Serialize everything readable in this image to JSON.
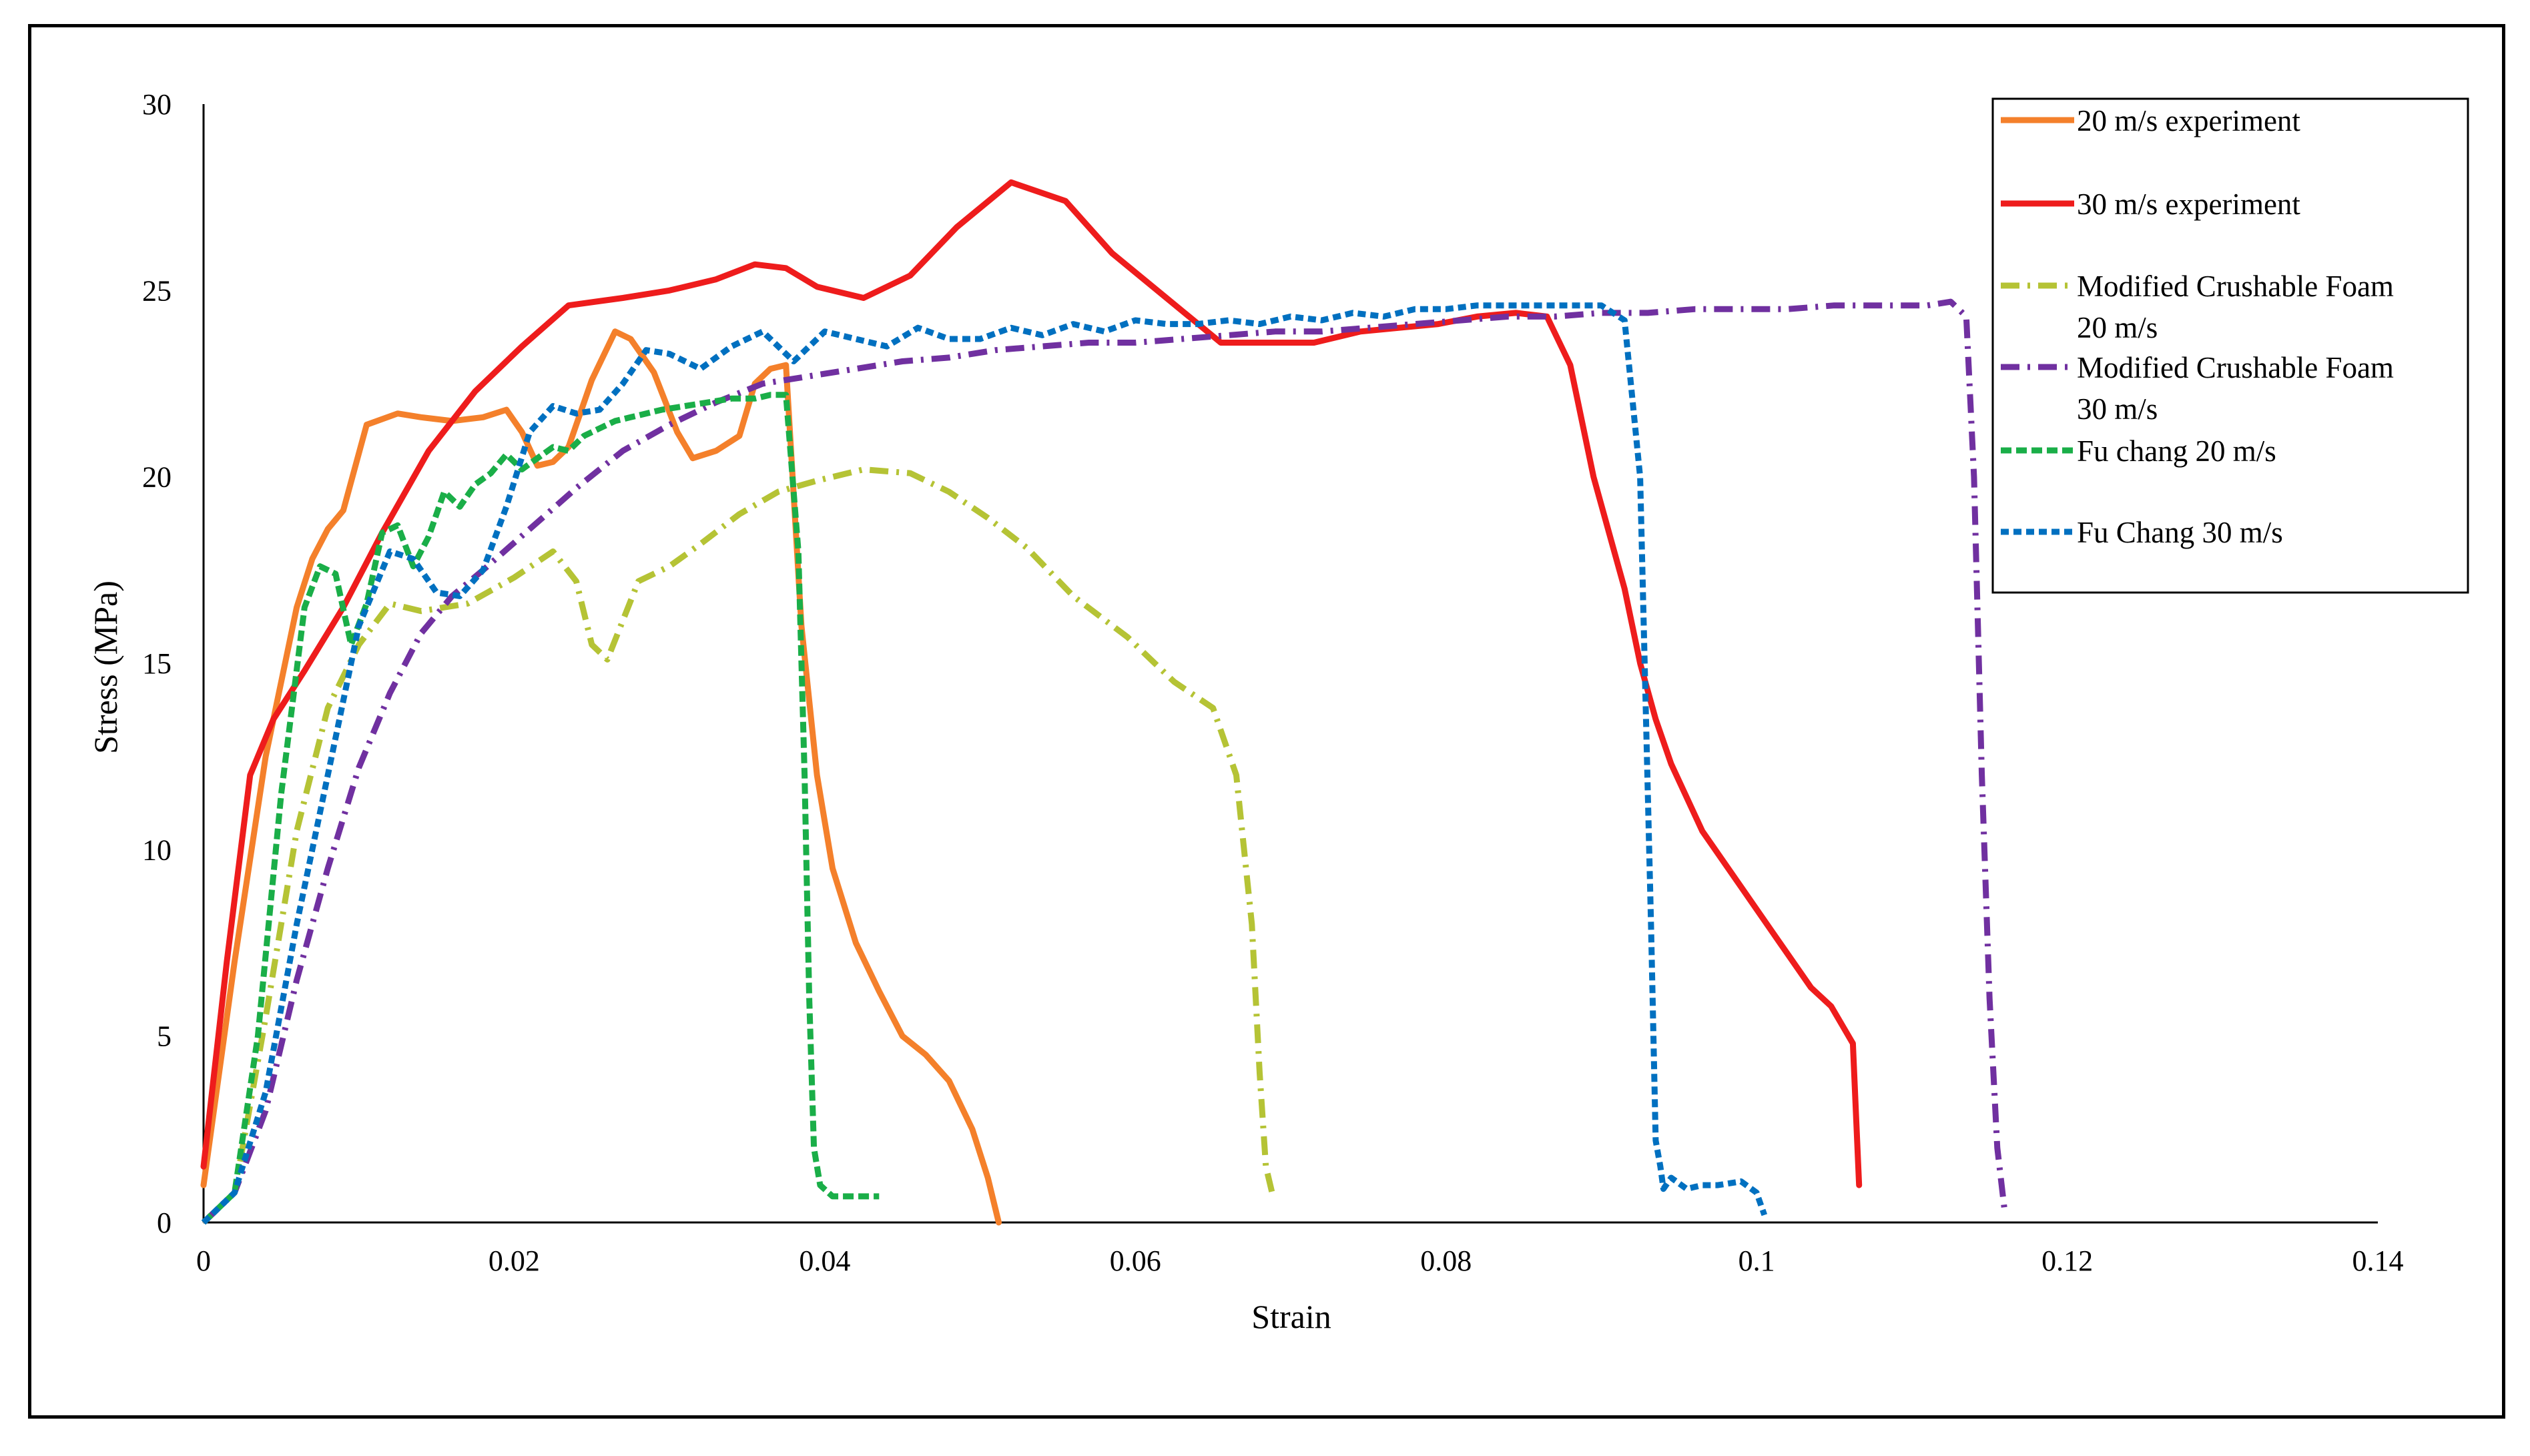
{
  "chart_data": {
    "type": "line",
    "title": "",
    "xlabel": "Strain",
    "ylabel": "Stress (MPa)",
    "xlim": [
      0,
      0.14
    ],
    "ylim": [
      0,
      30
    ],
    "xticks": [
      0,
      0.02,
      0.04,
      0.06,
      0.08,
      0.1,
      0.12,
      0.14
    ],
    "yticks": [
      0,
      5,
      10,
      15,
      20,
      25,
      30
    ],
    "xtick_labels": [
      "0",
      "0.02",
      "0.04",
      "0.06",
      "0.08",
      "0.1",
      "0.12",
      "0.14"
    ],
    "ytick_labels": [
      "0",
      "5",
      "10",
      "15",
      "20",
      "25",
      "30"
    ],
    "legend_position": "top-right",
    "series": [
      {
        "name": "20 m/s experiment",
        "legend_lines": [
          "20 m/s experiment"
        ],
        "color": "#F4802B",
        "dash": "solid",
        "x": [
          0,
          0.002,
          0.004,
          0.006,
          0.007,
          0.008,
          0.009,
          0.0105,
          0.0125,
          0.014,
          0.016,
          0.018,
          0.0195,
          0.0205,
          0.0215,
          0.0225,
          0.0235,
          0.025,
          0.0265,
          0.0275,
          0.029,
          0.0305,
          0.0315,
          0.033,
          0.0345,
          0.0355,
          0.0365,
          0.0375,
          0.0385,
          0.0395,
          0.0405,
          0.042,
          0.0435,
          0.045,
          0.0465,
          0.048,
          0.0495,
          0.0505,
          0.0512
        ],
        "y": [
          1,
          7,
          12.5,
          16.5,
          17.8,
          18.6,
          19.1,
          21.4,
          21.7,
          21.6,
          21.5,
          21.6,
          21.8,
          21.2,
          20.3,
          20.4,
          20.8,
          22.6,
          23.9,
          23.7,
          22.8,
          21.2,
          20.5,
          20.7,
          21.1,
          22.5,
          22.9,
          23,
          16,
          12,
          9.5,
          7.5,
          6.2,
          5,
          4.5,
          3.8,
          2.5,
          1.2,
          0
        ]
      },
      {
        "name": "30 m/s experiment",
        "legend_lines": [
          "30 m/s experiment"
        ],
        "color": "#EE1C1C",
        "dash": "solid",
        "x": [
          0,
          0.0015,
          0.003,
          0.0045,
          0.0065,
          0.009,
          0.0115,
          0.0145,
          0.0175,
          0.0205,
          0.0235,
          0.027,
          0.03,
          0.033,
          0.0355,
          0.0375,
          0.0395,
          0.0425,
          0.0455,
          0.0485,
          0.052,
          0.0555,
          0.0585,
          0.062,
          0.0655,
          0.069,
          0.0715,
          0.0745,
          0.077,
          0.0795,
          0.082,
          0.0845,
          0.0865,
          0.088,
          0.0895,
          0.0915,
          0.0925,
          0.0935,
          0.0945,
          0.0965,
          0.099,
          0.1015,
          0.1035,
          0.1048,
          0.1055,
          0.1062,
          0.1066
        ],
        "y": [
          1.5,
          7,
          12,
          13.5,
          14.8,
          16.5,
          18.5,
          20.7,
          22.3,
          23.5,
          24.6,
          24.8,
          25,
          25.3,
          25.7,
          25.6,
          25.1,
          24.8,
          25.4,
          26.7,
          27.9,
          27.4,
          26,
          24.8,
          23.6,
          23.6,
          23.6,
          23.9,
          24,
          24.1,
          24.3,
          24.4,
          24.3,
          23,
          20,
          17,
          15,
          13.5,
          12.3,
          10.5,
          9,
          7.5,
          6.3,
          5.8,
          5.3,
          4.8,
          1
        ]
      },
      {
        "name": "Modified Crushable Foam 20 m/s",
        "legend_lines": [
          "Modified Crushable Foam",
          "20 m/s"
        ],
        "color": "#B5C335",
        "dash": "28 12 4 12",
        "x": [
          0,
          0.002,
          0.004,
          0.006,
          0.008,
          0.01,
          0.012,
          0.014,
          0.017,
          0.02,
          0.0225,
          0.024,
          0.025,
          0.026,
          0.028,
          0.03,
          0.032,
          0.0345,
          0.037,
          0.0395,
          0.0425,
          0.0455,
          0.048,
          0.0505,
          0.053,
          0.056,
          0.0595,
          0.0625,
          0.065,
          0.0665,
          0.0675,
          0.068,
          0.0684,
          0.0688
        ],
        "y": [
          0,
          0.8,
          5.5,
          10.5,
          13.8,
          15.5,
          16.6,
          16.4,
          16.6,
          17.3,
          18,
          17.2,
          15.5,
          15.1,
          17.2,
          17.6,
          18.2,
          19,
          19.6,
          19.9,
          20.2,
          20.1,
          19.6,
          18.9,
          18.1,
          16.8,
          15.7,
          14.5,
          13.8,
          12,
          8,
          4,
          1.5,
          0.8
        ]
      },
      {
        "name": "Modified Crushable Foam 30 m/s",
        "legend_lines": [
          "Modified Crushable Foam",
          "30 m/s"
        ],
        "color": "#7030A0",
        "dash": "28 12 4 12",
        "x": [
          0,
          0.002,
          0.004,
          0.006,
          0.008,
          0.01,
          0.012,
          0.014,
          0.016,
          0.018,
          0.021,
          0.024,
          0.027,
          0.03,
          0.033,
          0.036,
          0.039,
          0.042,
          0.045,
          0.048,
          0.051,
          0.054,
          0.057,
          0.06,
          0.063,
          0.066,
          0.069,
          0.072,
          0.075,
          0.078,
          0.081,
          0.084,
          0.087,
          0.09,
          0.093,
          0.096,
          0.099,
          0.102,
          0.105,
          0.108,
          0.111,
          0.1125,
          0.1135,
          0.114,
          0.1145,
          0.115,
          0.1155,
          0.116
        ],
        "y": [
          0,
          0.8,
          3,
          6.5,
          9.5,
          12.2,
          14.2,
          15.8,
          16.8,
          17.5,
          18.6,
          19.7,
          20.7,
          21.4,
          22,
          22.5,
          22.7,
          22.9,
          23.1,
          23.2,
          23.4,
          23.5,
          23.6,
          23.6,
          23.7,
          23.8,
          23.9,
          23.9,
          24,
          24.1,
          24.2,
          24.3,
          24.3,
          24.4,
          24.4,
          24.5,
          24.5,
          24.5,
          24.6,
          24.6,
          24.6,
          24.7,
          24.3,
          20,
          12,
          6,
          2,
          0.2
        ]
      },
      {
        "name": "Fu chang 20 m/s",
        "legend_lines": [
          "Fu chang 20 m/s"
        ],
        "color": "#1AAE48",
        "dash": "16 7",
        "x": [
          0,
          0.002,
          0.0035,
          0.005,
          0.0065,
          0.0075,
          0.0085,
          0.0095,
          0.0105,
          0.0115,
          0.0125,
          0.0135,
          0.0145,
          0.0155,
          0.0165,
          0.0175,
          0.0185,
          0.0195,
          0.0205,
          0.0215,
          0.0225,
          0.0235,
          0.0245,
          0.0255,
          0.0265,
          0.0275,
          0.0285,
          0.0295,
          0.031,
          0.0325,
          0.034,
          0.0355,
          0.0365,
          0.0375,
          0.0383,
          0.0387,
          0.039,
          0.0393,
          0.0397,
          0.0405,
          0.042,
          0.0435
        ],
        "y": [
          0,
          0.8,
          5,
          11.5,
          16.5,
          17.6,
          17.4,
          15.5,
          16.6,
          18.5,
          18.7,
          17.6,
          18.4,
          19.6,
          19.2,
          19.8,
          20.1,
          20.6,
          20.2,
          20.5,
          20.8,
          20.7,
          21.1,
          21.3,
          21.5,
          21.6,
          21.7,
          21.8,
          21.9,
          22,
          22.1,
          22.1,
          22.2,
          22.2,
          18,
          12,
          6,
          2,
          1,
          0.7,
          0.7,
          0.7
        ]
      },
      {
        "name": "Fu Chang 30 m/s",
        "legend_lines": [
          "Fu Chang 30 m/s"
        ],
        "color": "#0070C0",
        "dash": "12 7",
        "x": [
          0,
          0.002,
          0.004,
          0.006,
          0.008,
          0.01,
          0.012,
          0.0135,
          0.015,
          0.0165,
          0.018,
          0.0195,
          0.021,
          0.0225,
          0.024,
          0.0255,
          0.027,
          0.0285,
          0.03,
          0.032,
          0.034,
          0.036,
          0.038,
          0.04,
          0.042,
          0.044,
          0.046,
          0.048,
          0.05,
          0.052,
          0.054,
          0.056,
          0.058,
          0.06,
          0.062,
          0.064,
          0.066,
          0.068,
          0.07,
          0.072,
          0.074,
          0.076,
          0.078,
          0.08,
          0.082,
          0.084,
          0.086,
          0.088,
          0.09,
          0.0915,
          0.0925,
          0.0932,
          0.0935,
          0.0938,
          0.094,
          0.0945,
          0.0955,
          0.0965,
          0.0975,
          0.099,
          0.1,
          0.1005
        ],
        "y": [
          0,
          0.8,
          3.5,
          8,
          12,
          16,
          18,
          17.8,
          16.9,
          16.8,
          17.5,
          19.2,
          21.2,
          21.9,
          21.7,
          21.8,
          22.5,
          23.4,
          23.3,
          22.9,
          23.5,
          23.9,
          23.1,
          23.9,
          23.7,
          23.5,
          24,
          23.7,
          23.7,
          24,
          23.8,
          24.1,
          23.9,
          24.2,
          24.1,
          24.1,
          24.2,
          24.1,
          24.3,
          24.2,
          24.4,
          24.3,
          24.5,
          24.5,
          24.6,
          24.6,
          24.6,
          24.6,
          24.6,
          24.2,
          20,
          8,
          2.2,
          1.5,
          0.9,
          1.2,
          0.9,
          1,
          1,
          1.1,
          0.8,
          0.2
        ]
      }
    ]
  }
}
